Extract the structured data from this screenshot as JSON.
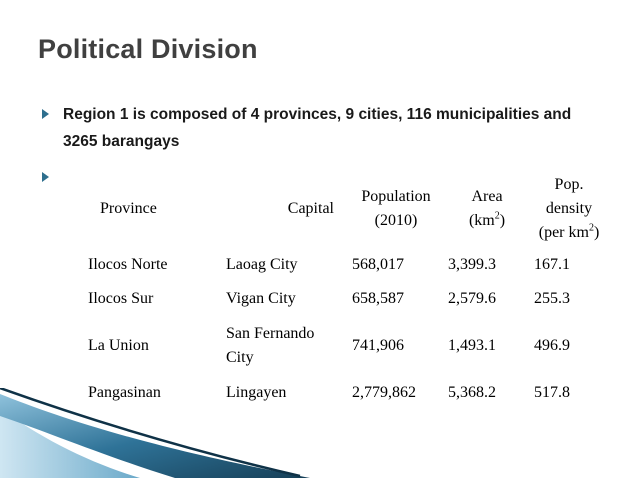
{
  "slide": {
    "title": "Political Division",
    "bullet1_text": "Region 1 is composed of 4 provinces, 9 cities, 116 municipalities and 3265 barangays"
  },
  "table": {
    "headers": {
      "province": "Province",
      "capital": "Capital",
      "population_line1": "Population",
      "population_line2": "(2010)",
      "area_line1": "Area",
      "area_line2_base": "(km",
      "area_line2_sup": "2",
      "area_line2_end": ")",
      "density_line1": "Pop.",
      "density_line2": "density",
      "density_line3_base": "(per km",
      "density_line3_sup": "2",
      "density_line3_end": ")"
    },
    "rows": [
      {
        "province": "Ilocos Norte",
        "capital": "Laoag City",
        "population": "568,017",
        "area": "3,399.3",
        "density": "167.1"
      },
      {
        "province": "Ilocos Sur",
        "capital": "Vigan City",
        "population": "658,587",
        "area": "2,579.6",
        "density": "255.3"
      },
      {
        "province": "La Union",
        "capital": "San Fernando City",
        "population": "741,906",
        "area": "1,493.1",
        "density": "496.9"
      },
      {
        "province": "Pangasinan",
        "capital": "Lingayen",
        "population": "2,779,862",
        "area": "5,368.2",
        "density": "517.8"
      }
    ]
  },
  "colors": {
    "title": "#404040",
    "bullet": "#2e6f8e",
    "deco_dark": "#1d4f6b",
    "deco_light": "#8fc2dc"
  }
}
